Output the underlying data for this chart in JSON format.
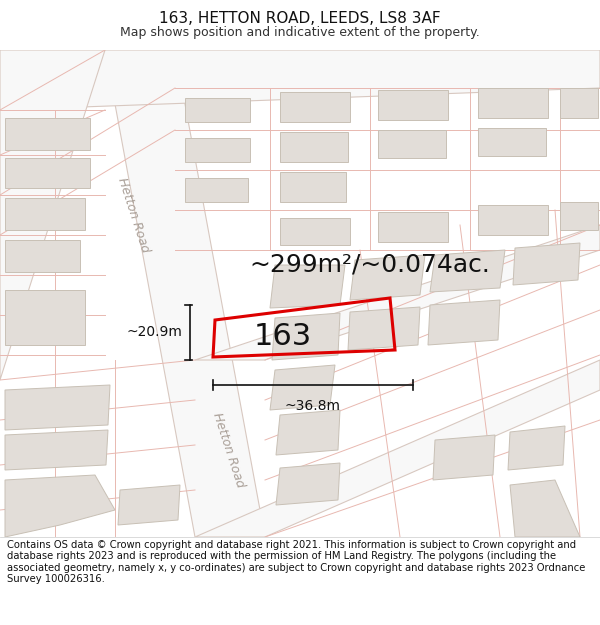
{
  "title": "163, HETTON ROAD, LEEDS, LS8 3AF",
  "subtitle": "Map shows position and indicative extent of the property.",
  "area_text": "~299m²/~0.074ac.",
  "property_number": "163",
  "dim_width": "~36.8m",
  "dim_height": "~20.9m",
  "footer": "Contains OS data © Crown copyright and database right 2021. This information is subject to Crown copyright and database rights 2023 and is reproduced with the permission of HM Land Registry. The polygons (including the associated geometry, namely x, y co-ordinates) are subject to Crown copyright and database rights 2023 Ordnance Survey 100026316.",
  "map_bg": "#f7f4f1",
  "building_color": "#e2ddd8",
  "building_edge": "#c8c0b5",
  "road_fill": "#ffffff",
  "road_edge": "#e8cfc8",
  "parcel_edge": "#e8b8b0",
  "highlight_edge": "#dd0000",
  "dim_color": "#111111",
  "road_label_color": "#aaa098",
  "area_text_color": "#111111",
  "title_fontsize": 11,
  "subtitle_fontsize": 9,
  "footer_fontsize": 7.2,
  "area_fontsize": 18,
  "prop_label_fontsize": 22,
  "dim_fontsize": 10,
  "road_label_fontsize": 9
}
